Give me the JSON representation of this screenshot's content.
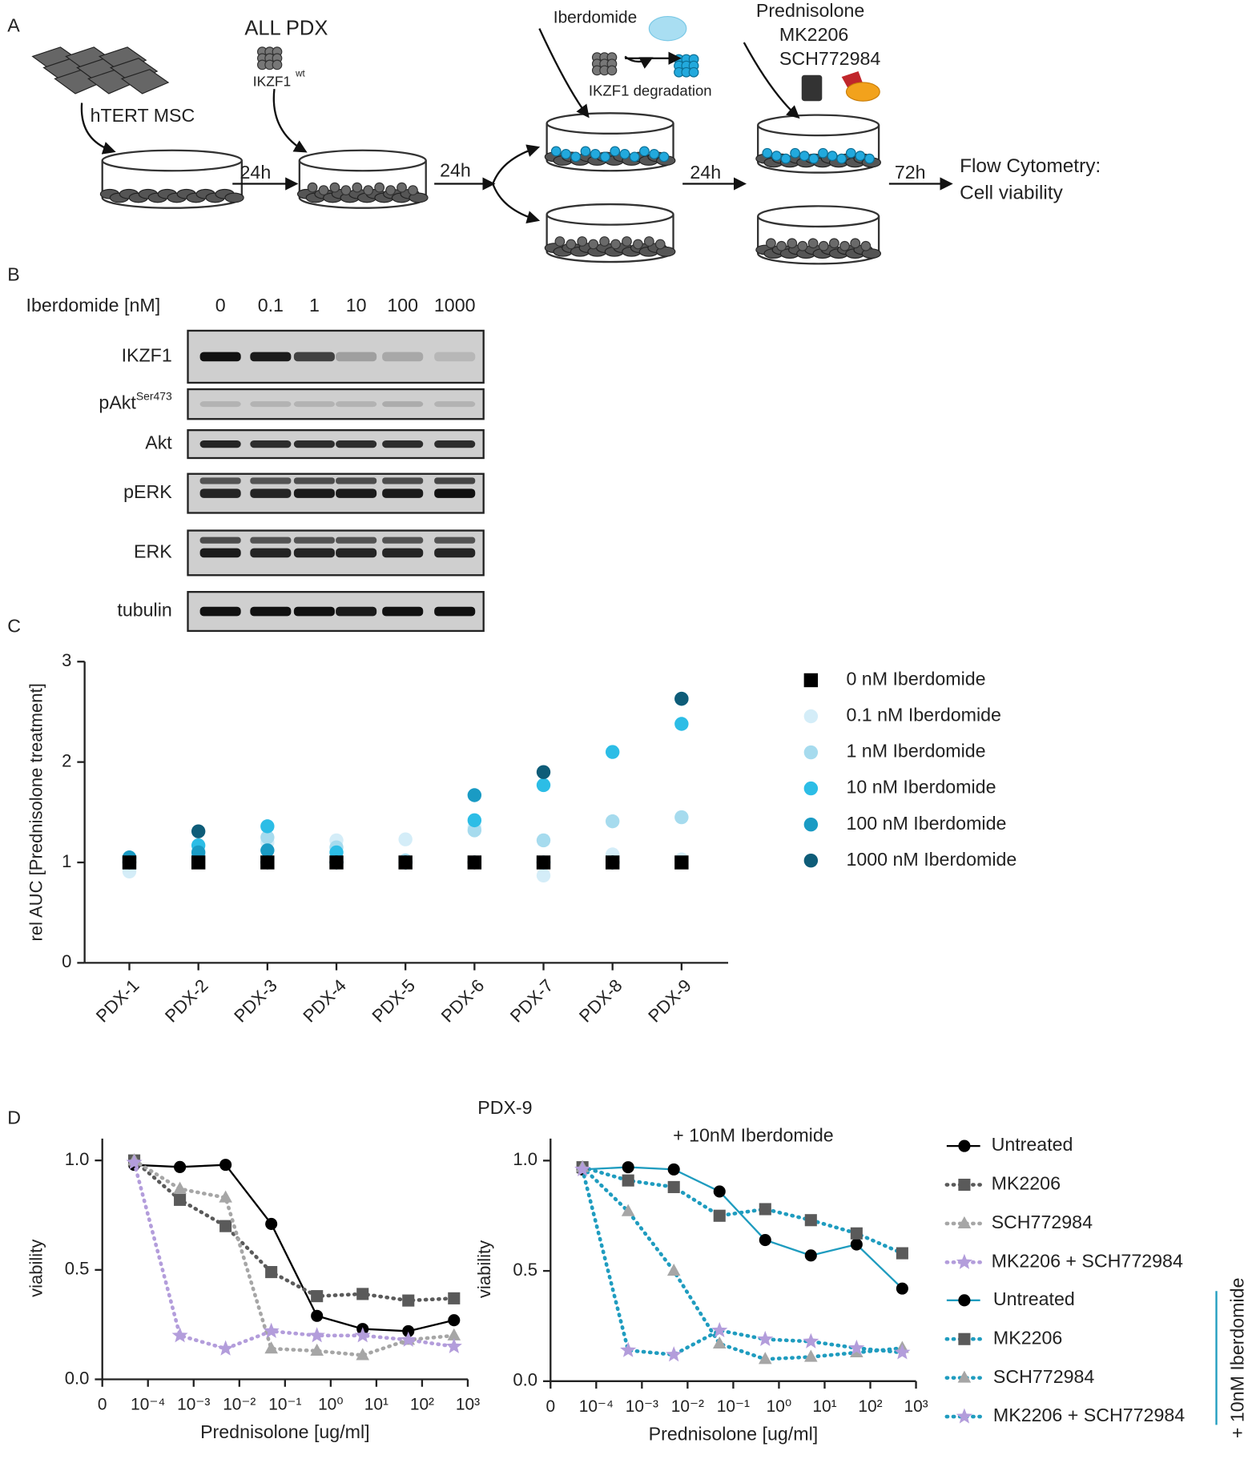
{
  "panel_labels": [
    "A",
    "B",
    "C",
    "D"
  ],
  "schematic": {
    "mask_label": "hTERT MSC",
    "pdx_label": "ALL PDX",
    "pdx_marker": "IKZF1",
    "pdx_marker_sup": "wt",
    "drug1": "Iberdomide",
    "drug1_effect": "IKZF1 degradation",
    "drugs2": [
      "Prednisolone",
      "MK2206",
      "SCH772984"
    ],
    "intervals": [
      "24h",
      "24h",
      "24h",
      "72h"
    ],
    "readout": [
      "Flow Cytometry:",
      "Cell viability"
    ]
  },
  "blot": {
    "treatment_label": "Iberdomide [nM]",
    "doses": [
      "0",
      "0.1",
      "1",
      "10",
      "100",
      "1000"
    ],
    "rows": [
      {
        "label": "IKZF1"
      },
      {
        "label": "pAkt",
        "superscript": "Ser473"
      },
      {
        "label": "Akt"
      },
      {
        "label": "pERK"
      },
      {
        "label": "ERK"
      },
      {
        "label": "tubulin"
      }
    ]
  },
  "panel_d_title": "PDX-9",
  "chart_data": [
    {
      "type": "scatter",
      "y_label": "rel AUC [Prednisolone treatment]",
      "categories": [
        "PDX-1",
        "PDX-2",
        "PDX-3",
        "PDX-4",
        "PDX-5",
        "PDX-6",
        "PDX-7",
        "PDX-8",
        "PDX-9"
      ],
      "ylim": [
        0,
        3
      ],
      "yticks": [
        0,
        1,
        2,
        3
      ],
      "series": [
        {
          "name": "0 nM Iberdomide",
          "color": "#000000",
          "marker": "square",
          "values": [
            1,
            1,
            1,
            1,
            1,
            1,
            1,
            1,
            1
          ]
        },
        {
          "name": "0.1 nM Iberdomide",
          "color": "#d4edf8",
          "marker": "circle",
          "values": [
            0.91,
            1.12,
            1.2,
            1.22,
            1.23,
            1.35,
            0.87,
            1.08,
            1.03
          ]
        },
        {
          "name": "1 nM Iberdomide",
          "color": "#a6dbee",
          "marker": "circle",
          "values": [
            1.02,
            1.08,
            1.25,
            1.15,
            1.02,
            1.32,
            1.22,
            1.41,
            1.45
          ]
        },
        {
          "name": "10 nM Iberdomide",
          "color": "#2cbde6",
          "marker": "circle",
          "values": [
            1.04,
            1.17,
            1.36,
            1.1,
            1.0,
            1.42,
            1.77,
            2.1,
            2.38
          ]
        },
        {
          "name": "100 nM Iberdomide",
          "color": "#1a9bc4",
          "marker": "circle",
          "values": [
            1.05,
            1.1,
            1.12,
            1.0,
            1.0,
            1.67,
            1.0,
            1.0,
            2.63
          ]
        },
        {
          "name": "1000 nM Iberdomide",
          "color": "#0e5c78",
          "marker": "circle",
          "values": [
            1.0,
            1.31,
            1.0,
            1.0,
            1.0,
            1.0,
            1.9,
            1.0,
            2.63
          ]
        }
      ]
    },
    {
      "type": "line",
      "y_label": "viability",
      "x_label": "Prednisolone [ug/ml]",
      "xscale": "log",
      "x": [
        5e-05,
        0.0005,
        0.005,
        0.05,
        0.5,
        5,
        50,
        500
      ],
      "xlim": [
        1e-05,
        1000
      ],
      "xticks": [
        0,
        {
          "value": 0.0001,
          "label": "10⁻⁴"
        },
        {
          "value": 0.001,
          "label": "10⁻³"
        },
        {
          "value": 0.01,
          "label": "10⁻²"
        },
        {
          "value": 0.1,
          "label": "10⁻¹"
        },
        {
          "value": 1,
          "label": "10⁰"
        },
        {
          "value": 10,
          "label": "10¹"
        },
        {
          "value": 100,
          "label": "10²"
        },
        {
          "value": 1000,
          "label": "10³"
        }
      ],
      "ylim": [
        0,
        1.1
      ],
      "yticks": [
        {
          "value": 0,
          "label": "0.0"
        },
        0.5,
        {
          "value": 1,
          "label": "1.0"
        }
      ],
      "series": [
        {
          "name": "Untreated",
          "color": "#000000",
          "marker": "circle",
          "linestyle": "solid",
          "values": [
            0.98,
            0.97,
            0.98,
            0.71,
            0.29,
            0.23,
            0.22,
            0.27
          ]
        },
        {
          "name": "MK2206",
          "color": "#5a5a5a",
          "marker": "square",
          "linestyle": "dotted",
          "values": [
            1.0,
            0.82,
            0.7,
            0.49,
            0.38,
            0.39,
            0.36,
            0.37
          ]
        },
        {
          "name": "SCH772984",
          "color": "#a6a6a6",
          "marker": "triangle",
          "linestyle": "dotted",
          "values": [
            1.0,
            0.87,
            0.83,
            0.14,
            0.13,
            0.11,
            0.18,
            0.2
          ]
        },
        {
          "name": "MK2206 + SCH772984",
          "color": "#b39ddb",
          "marker": "star",
          "linestyle": "dotted",
          "values": [
            0.99,
            0.2,
            0.14,
            0.22,
            0.2,
            0.2,
            0.18,
            0.15
          ]
        }
      ]
    },
    {
      "type": "line",
      "subtitle": "+ 10nM Iberdomide",
      "legend_group_label": "+ 10nM Iberdomide",
      "y_label": "viability",
      "x_label": "Prednisolone [ug/ml]",
      "xscale": "log",
      "x": [
        5e-05,
        0.0005,
        0.005,
        0.05,
        0.5,
        5,
        50,
        500
      ],
      "xlim": [
        1e-05,
        1000
      ],
      "xticks": [
        0,
        {
          "value": 0.0001,
          "label": "10⁻⁴"
        },
        {
          "value": 0.001,
          "label": "10⁻³"
        },
        {
          "value": 0.01,
          "label": "10⁻²"
        },
        {
          "value": 0.1,
          "label": "10⁻¹"
        },
        {
          "value": 1,
          "label": "10⁰"
        },
        {
          "value": 10,
          "label": "10¹"
        },
        {
          "value": 100,
          "label": "10²"
        },
        {
          "value": 1000,
          "label": "10³"
        }
      ],
      "ylim": [
        0,
        1.1
      ],
      "yticks": [
        {
          "value": 0,
          "label": "0.0"
        },
        0.5,
        {
          "value": 1,
          "label": "1.0"
        }
      ],
      "series": [
        {
          "name": "Untreated",
          "color": "#1f9cbf",
          "marker": "circle",
          "marker_color": "#000000",
          "linestyle": "solid",
          "values": [
            0.96,
            0.97,
            0.96,
            0.86,
            0.64,
            0.57,
            0.62,
            0.42
          ]
        },
        {
          "name": "MK2206",
          "color": "#1f9cbf",
          "marker": "square",
          "marker_color": "#5a5a5a",
          "linestyle": "dotted",
          "values": [
            0.97,
            0.91,
            0.88,
            0.75,
            0.78,
            0.73,
            0.67,
            0.58
          ]
        },
        {
          "name": "SCH772984",
          "color": "#1f9cbf",
          "marker": "triangle",
          "marker_color": "#a6a6a6",
          "linestyle": "dotted",
          "values": [
            0.97,
            0.77,
            0.5,
            0.17,
            0.1,
            0.11,
            0.13,
            0.15
          ]
        },
        {
          "name": "MK2206 + SCH772984",
          "color": "#1f9cbf",
          "marker": "star",
          "marker_color": "#b39ddb",
          "linestyle": "dotted",
          "values": [
            0.96,
            0.14,
            0.12,
            0.23,
            0.19,
            0.18,
            0.15,
            0.13
          ]
        }
      ]
    }
  ]
}
